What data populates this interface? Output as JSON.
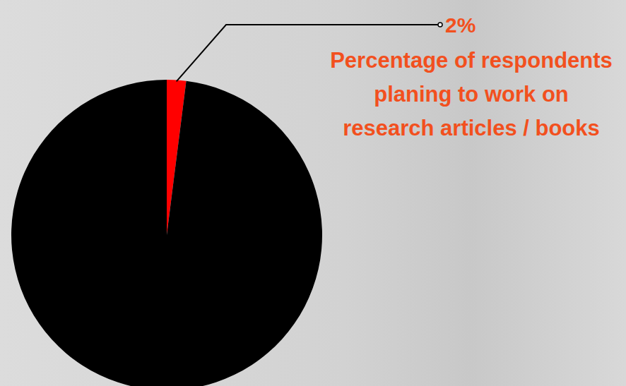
{
  "chart_data": {
    "type": "pie",
    "title": "Percentage of respondents planing to work on research articles / books",
    "values": [
      2,
      98
    ],
    "value_labels": [
      "2%",
      null
    ],
    "colors": [
      "#ff0000",
      "#000000"
    ],
    "data_labels": true
  }
}
